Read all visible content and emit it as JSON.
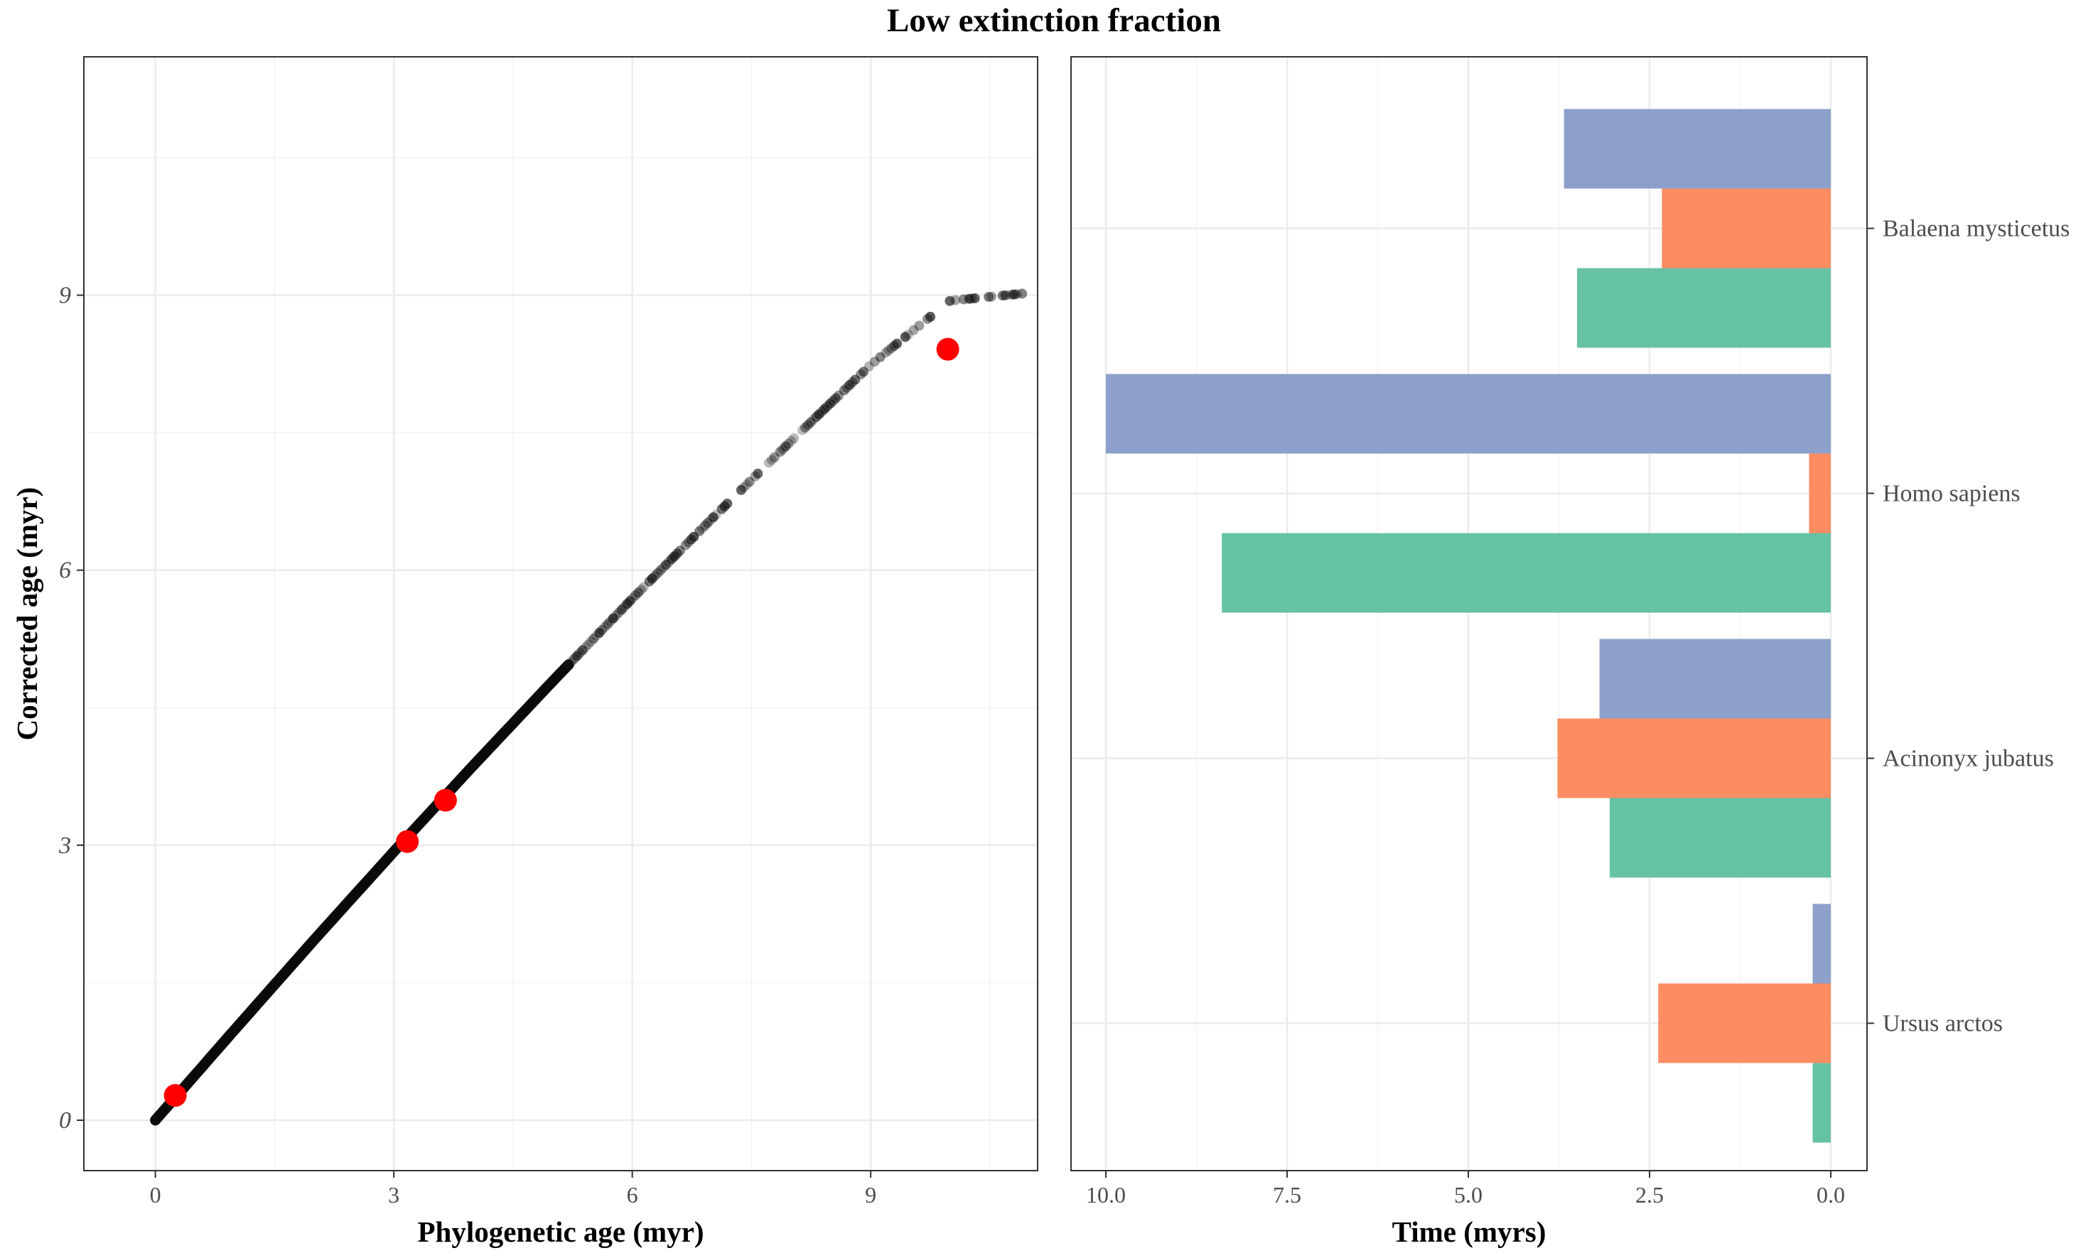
{
  "figure": {
    "title": "Low extinction fraction"
  },
  "chart_data": [
    {
      "type": "scatter",
      "xlabel": "Phylogenetic age (myr)",
      "ylabel": "Corrected age (myr)",
      "xlim": [
        -0.9,
        11.1
      ],
      "ylim": [
        -0.55,
        11.6
      ],
      "xticks": [
        0,
        3,
        6,
        9
      ],
      "yticks": [
        0,
        3,
        6,
        9
      ],
      "grid": true,
      "background_curve": {
        "name": "",
        "color": "#000000",
        "x_range": [
          0,
          10.95
        ],
        "shape": "y = 1.0*x - 0.02*x^2 style near-linear relationship (slight saturation)",
        "points_x": [
          0,
          1,
          2,
          3,
          4,
          5,
          6,
          7,
          8,
          9,
          10,
          10.95
        ],
        "points_y": [
          0,
          0.99,
          1.97,
          2.93,
          3.87,
          4.79,
          5.69,
          6.56,
          7.41,
          8.24,
          8.94,
          9.02
        ]
      },
      "highlight_points": {
        "color": "#ff0000",
        "x": [
          0.25,
          3.17,
          3.65,
          9.97
        ],
        "y": [
          0.27,
          3.04,
          3.49,
          8.41
        ]
      }
    },
    {
      "type": "bar",
      "orientation": "horizontal",
      "xlabel": "Time (myrs)",
      "ylabel": "",
      "xlim": [
        10.0,
        0.0
      ],
      "x_reversed": true,
      "xticks": [
        10.0,
        7.5,
        5.0,
        2.5,
        0.0
      ],
      "xtick_labels": [
        "10.0",
        "7.5",
        "5.0",
        "2.5",
        "0.0"
      ],
      "grid": true,
      "categories": [
        "Ursus arctos",
        "Acinonyx jubatus",
        "Homo sapiens",
        "Balaena mysticetus"
      ],
      "series": [
        {
          "color": "#66c2a5",
          "values": [
            0.25,
            3.05,
            8.4,
            3.5
          ]
        },
        {
          "color": "#fc8d62",
          "values": [
            2.38,
            3.77,
            0.3,
            2.33
          ]
        },
        {
          "color": "#8da0cb",
          "values": [
            0.25,
            3.19,
            10.0,
            3.68
          ]
        }
      ]
    }
  ]
}
